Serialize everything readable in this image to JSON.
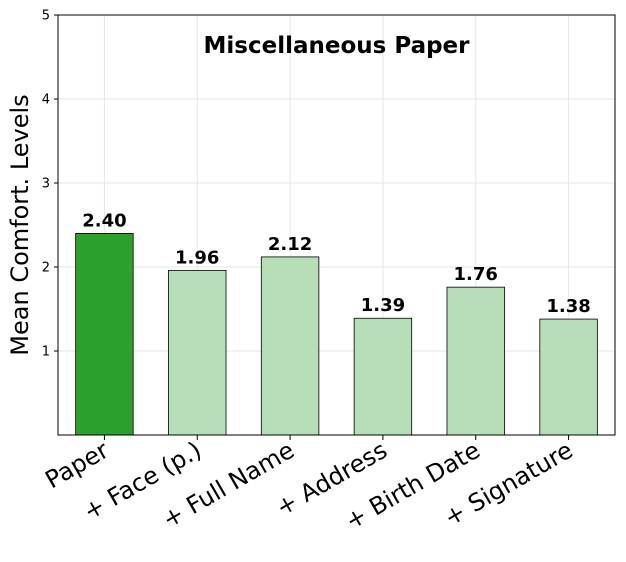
{
  "chart_data": {
    "type": "bar",
    "title": "Miscellaneous Paper",
    "ylabel": "Mean Comfort. Levels",
    "xlabel": "",
    "categories": [
      "Paper",
      "+ Face (p.)",
      "+ Full Name",
      "+ Address",
      "+ Birth Date",
      "+ Signature"
    ],
    "values": [
      2.4,
      1.96,
      2.12,
      1.39,
      1.76,
      1.38
    ],
    "data_labels": [
      "2.40",
      "1.96",
      "2.12",
      "1.39",
      "1.76",
      "1.38"
    ],
    "ylim": [
      0,
      5
    ],
    "yticks": [
      1,
      2,
      3,
      4,
      5
    ],
    "ytick_labels": [
      "1",
      "2",
      "3",
      "4",
      "5"
    ],
    "grid": true,
    "colors": {
      "highlight": "#2ca02c",
      "base": "#b7dfb7",
      "edge": "#000000",
      "grid": "#e6e6e6"
    }
  }
}
